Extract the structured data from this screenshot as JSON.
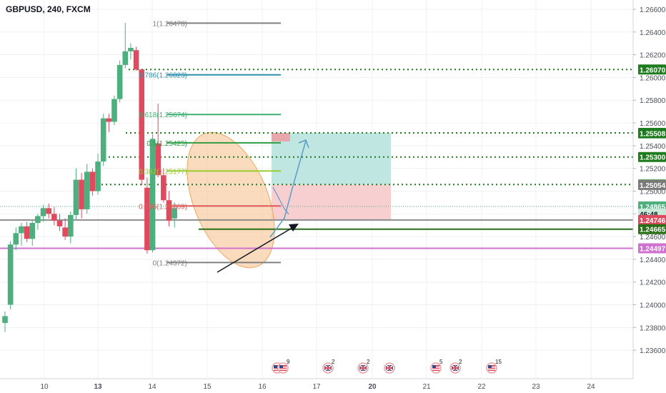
{
  "header": {
    "symbol": "GBPUSD, 240, FXCM"
  },
  "colors": {
    "up": "#4caf7d",
    "down": "#e04a5f",
    "grid": "#eef1f4",
    "axis_text": "#4a4f5a",
    "fib_gray": "#808080",
    "fib_236": "#e05a5a",
    "fib_382": "#9acd32",
    "fib_5": "#2e9d44",
    "fib_618": "#3cb371",
    "fib_786": "#2f8fb0",
    "dotted_green": "#1e7b1e",
    "line_gray": "#8c8c8c",
    "line_green": "#2a6f17",
    "line_magenta": "#d070d0",
    "ellipse_fill": "#f7c899",
    "ellipse_stroke": "#f0a860",
    "long_profit": "#bfe6e1",
    "long_stop": "#f7cfd1",
    "long_entry": "#e8a7ac",
    "trend_black": "#131722",
    "path_blue": "#5b9ec7"
  },
  "chart_data": {
    "type": "candlestick",
    "title": "GBPUSD, 240, FXCM",
    "ylim": [
      1.2345,
      1.2665
    ],
    "y_ticks": [
      "1.26600",
      "1.26400",
      "1.26200",
      "1.26000",
      "1.25800",
      "1.25600",
      "1.25400",
      "1.25200",
      "1.25000",
      "1.24800",
      "1.24600",
      "1.24400",
      "1.24200",
      "1.24000",
      "1.23800",
      "1.23600"
    ],
    "x_ticks": [
      "10",
      "13",
      "14",
      "15",
      "16",
      "17",
      "20",
      "21",
      "22",
      "23",
      "24"
    ],
    "candles": [
      {
        "o": 1.2384,
        "h": 1.2394,
        "l": 1.2376,
        "c": 1.239
      },
      {
        "o": 1.24,
        "h": 1.2456,
        "l": 1.2396,
        "c": 1.2453
      },
      {
        "o": 1.2453,
        "h": 1.2468,
        "l": 1.2448,
        "c": 1.2463
      },
      {
        "o": 1.2463,
        "h": 1.2472,
        "l": 1.2452,
        "c": 1.2469
      },
      {
        "o": 1.2469,
        "h": 1.2473,
        "l": 1.2455,
        "c": 1.2458
      },
      {
        "o": 1.2458,
        "h": 1.2474,
        "l": 1.2452,
        "c": 1.2472
      },
      {
        "o": 1.2472,
        "h": 1.248,
        "l": 1.2466,
        "c": 1.2478
      },
      {
        "o": 1.2478,
        "h": 1.2488,
        "l": 1.2473,
        "c": 1.2485
      },
      {
        "o": 1.2485,
        "h": 1.2489,
        "l": 1.2476,
        "c": 1.248
      },
      {
        "o": 1.248,
        "h": 1.2486,
        "l": 1.247,
        "c": 1.2474
      },
      {
        "o": 1.2474,
        "h": 1.248,
        "l": 1.2465,
        "c": 1.2469
      },
      {
        "o": 1.2468,
        "h": 1.2476,
        "l": 1.2457,
        "c": 1.246
      },
      {
        "o": 1.246,
        "h": 1.2482,
        "l": 1.2454,
        "c": 1.2479
      },
      {
        "o": 1.2479,
        "h": 1.252,
        "l": 1.2475,
        "c": 1.251
      },
      {
        "o": 1.251,
        "h": 1.2516,
        "l": 1.2476,
        "c": 1.2484
      },
      {
        "o": 1.2484,
        "h": 1.2524,
        "l": 1.248,
        "c": 1.2517
      },
      {
        "o": 1.2517,
        "h": 1.252,
        "l": 1.2496,
        "c": 1.25
      },
      {
        "o": 1.25,
        "h": 1.2533,
        "l": 1.2497,
        "c": 1.2526
      },
      {
        "o": 1.2526,
        "h": 1.2568,
        "l": 1.2522,
        "c": 1.2564
      },
      {
        "o": 1.2564,
        "h": 1.2568,
        "l": 1.2552,
        "c": 1.2561
      },
      {
        "o": 1.2561,
        "h": 1.2584,
        "l": 1.2558,
        "c": 1.2581
      },
      {
        "o": 1.2581,
        "h": 1.2615,
        "l": 1.2578,
        "c": 1.2611
      },
      {
        "o": 1.2611,
        "h": 1.2648,
        "l": 1.2608,
        "c": 1.2623
      },
      {
        "o": 1.2623,
        "h": 1.263,
        "l": 1.2616,
        "c": 1.2626
      },
      {
        "o": 1.2624,
        "h": 1.2627,
        "l": 1.2606,
        "c": 1.2607
      },
      {
        "o": 1.2607,
        "h": 1.2607,
        "l": 1.2505,
        "c": 1.251
      },
      {
        "o": 1.2503,
        "h": 1.2512,
        "l": 1.2445,
        "c": 1.2448
      },
      {
        "o": 1.2448,
        "h": 1.255,
        "l": 1.2446,
        "c": 1.2546
      },
      {
        "o": 1.2542,
        "h": 1.2577,
        "l": 1.2512,
        "c": 1.2514
      },
      {
        "o": 1.2514,
        "h": 1.252,
        "l": 1.249,
        "c": 1.2492
      },
      {
        "o": 1.2492,
        "h": 1.25,
        "l": 1.2469,
        "c": 1.2474
      },
      {
        "o": 1.2476,
        "h": 1.249,
        "l": 1.2468,
        "c": 1.2485
      }
    ],
    "fib_levels": [
      {
        "label": "1(1.26478)",
        "value": 1.26478
      },
      {
        "label": "0.786(1.26023)",
        "value": 1.26023
      },
      {
        "label": "0.618(1.25674)",
        "value": 1.25674
      },
      {
        "label": "0.5(1.25425)",
        "value": 1.25425
      },
      {
        "label": "0.382(1.25177)",
        "value": 1.25177
      },
      {
        "label": "0.236(1.24869)",
        "value": 1.24869
      },
      {
        "label": "0(1.24372)",
        "value": 1.24372
      }
    ],
    "dotted_lines": [
      1.2607,
      1.25512,
      1.253,
      1.25058
    ],
    "solid_lines": [
      {
        "value": 1.24746,
        "kind": "gray"
      },
      {
        "value": 1.24665,
        "kind": "green"
      },
      {
        "value": 1.24497,
        "kind": "magenta"
      }
    ],
    "current_price": 1.24865,
    "long_position": {
      "stop": 1.24746,
      "entry": 1.25058,
      "target": 1.25512
    },
    "price_badges": [
      {
        "text": "1.26070",
        "value": 1.2607,
        "bg": "#1e7b1e",
        "fg": "#ffffff"
      },
      {
        "text": "1.25512",
        "value": 1.25512,
        "bg": "#1e7b1e",
        "fg": "#ffffff"
      },
      {
        "text": "1.25508",
        "value": 1.25508,
        "bg": "#1e7b1e",
        "fg": "#ffffff"
      },
      {
        "text": "1.25300",
        "value": 1.253,
        "bg": "#1e7b1e",
        "fg": "#ffffff"
      },
      {
        "text": "1.25058",
        "value": 1.25058,
        "bg": "#1e7b1e",
        "fg": "#ffffff"
      },
      {
        "text": "1.25054",
        "value": 1.25054,
        "bg": "#7a7a7a",
        "fg": "#ffffff"
      },
      {
        "text": "1.24865",
        "value": 1.24865,
        "bg": "#4caf7d",
        "fg": "#ffffff"
      },
      {
        "text": "46:48",
        "value": 1.248,
        "bg": "#c9ead8",
        "fg": "#131722"
      },
      {
        "text": "1.24746",
        "value": 1.24746,
        "bg": "#e04a5f",
        "fg": "#ffffff"
      },
      {
        "text": "1.24665",
        "value": 1.24665,
        "bg": "#2a6f17",
        "fg": "#ffffff"
      },
      {
        "text": "1.24497",
        "value": 1.24497,
        "bg": "#d070d0",
        "fg": "#ffffff"
      }
    ],
    "events": [
      {
        "flag": "us",
        "count": "9",
        "double": true
      },
      {
        "flag": "uk",
        "count": "2"
      },
      {
        "flag": "uk",
        "count": "2"
      },
      {
        "flag": "uk",
        "count": ""
      },
      {
        "flag": "us",
        "count": "5"
      },
      {
        "flag": "uk",
        "count": "2"
      },
      {
        "flag": "us",
        "count": "15"
      }
    ]
  }
}
